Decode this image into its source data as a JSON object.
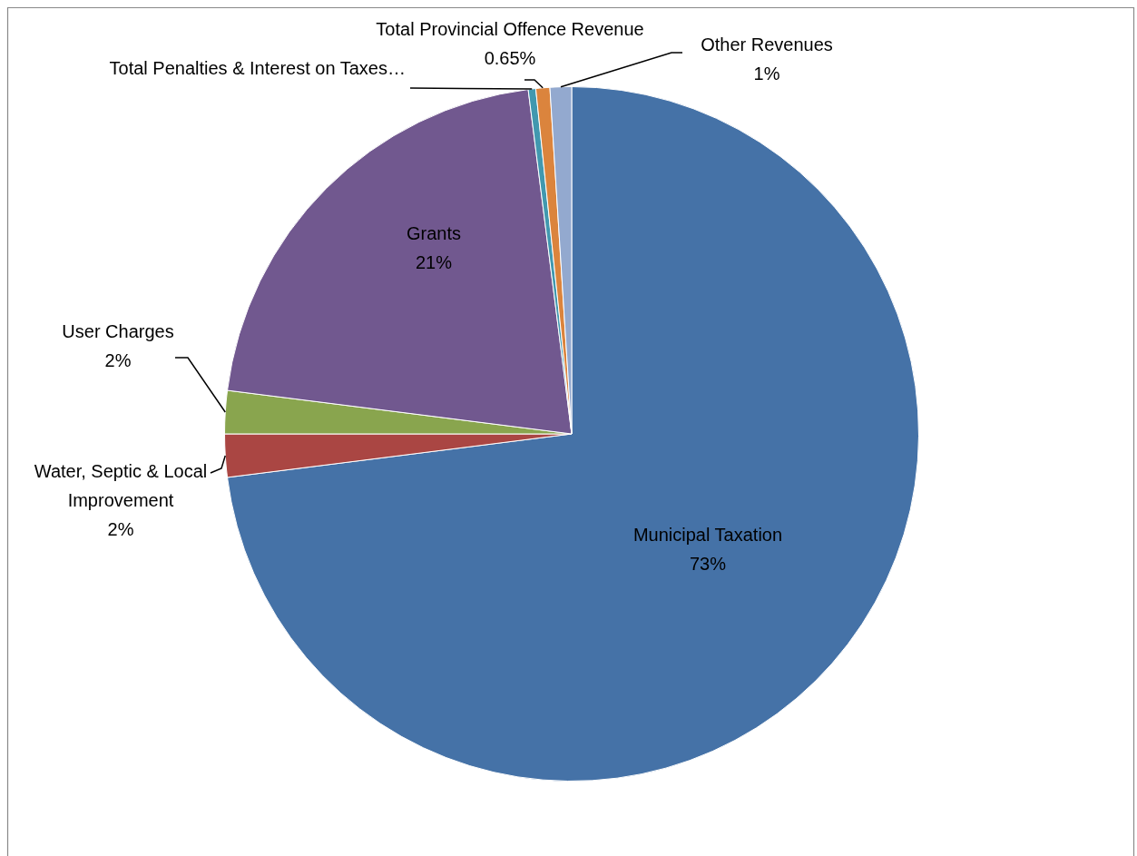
{
  "chart_data": {
    "type": "pie",
    "categories": [
      "Municipal Taxation",
      "Water, Septic & Local Improvement",
      "User Charges",
      "Grants",
      "Total Penalties & Interest on Taxes…",
      "Total Provincial Offence Revenue",
      "Other Revenues"
    ],
    "values": [
      73,
      2,
      2,
      21,
      0.35,
      0.65,
      1
    ],
    "value_labels": [
      "73%",
      "2%",
      "2%",
      "21%",
      null,
      "0.65%",
      "1%"
    ],
    "colors": [
      "#4572a7",
      "#aa4643",
      "#89a54e",
      "#71588f",
      "#4198af",
      "#db843d",
      "#93a9cf"
    ],
    "legend": false
  }
}
